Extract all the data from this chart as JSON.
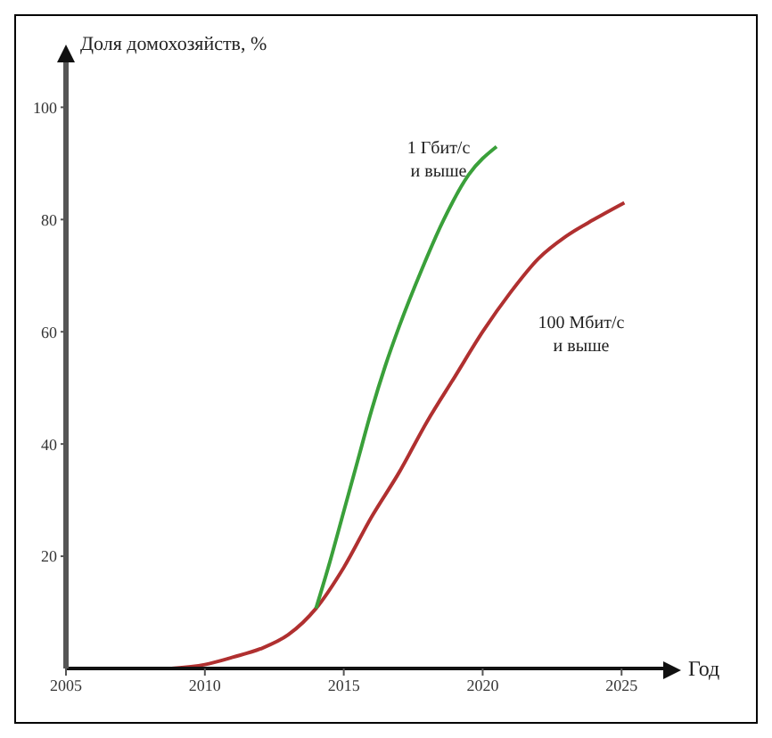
{
  "chart_data": {
    "type": "line",
    "ylabel": "Доля домохозяйств, %",
    "xlabel": "Год",
    "xlim": [
      2005,
      2026.5
    ],
    "xticks": [
      2005,
      2010,
      2015,
      2020,
      2025
    ],
    "ylim": [
      0,
      108
    ],
    "yticks": [
      20,
      40,
      60,
      80,
      100
    ],
    "grid": false,
    "legend": false,
    "marker": "none",
    "line_style": "solid",
    "series": [
      {
        "color": "#b03030",
        "x": [
          2008.8,
          2010,
          2011,
          2012,
          2013,
          2014,
          2015,
          2016,
          2017,
          2018,
          2019,
          2020,
          2021,
          2022,
          2023,
          2024,
          2025.1
        ],
        "values": [
          0,
          0.7,
          2,
          3.5,
          6,
          10.7,
          18,
          27,
          35,
          44,
          52,
          60,
          67,
          73,
          77,
          80,
          83
        ]
      },
      {
        "color": "#3aa03a",
        "x": [
          2014,
          2014.5,
          2015,
          2015.5,
          2016,
          2016.5,
          2017,
          2017.8,
          2018.6,
          2019.5,
          2020.5
        ],
        "values": [
          10.7,
          19,
          28,
          37,
          46,
          54,
          61,
          71,
          80,
          88,
          93
        ]
      }
    ],
    "annotations": [
      "1 Гбит/с и выше",
      "100 Мбит/с и выше"
    ]
  }
}
